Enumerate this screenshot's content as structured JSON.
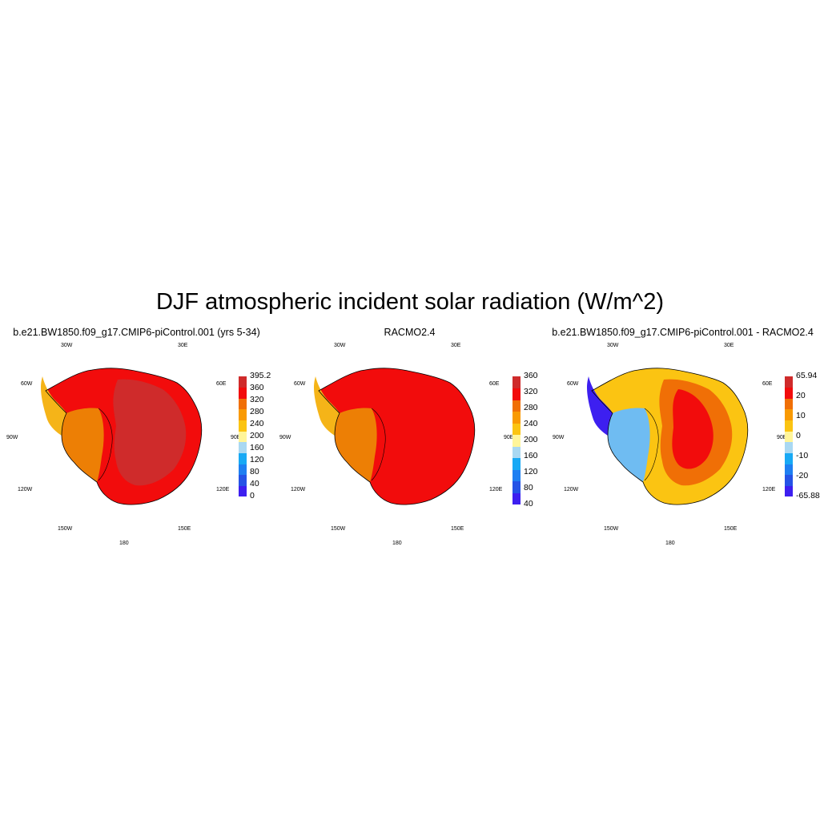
{
  "figure": {
    "title": "DJF atmospheric incident solar radiation (W/m^2)"
  },
  "map_labels": {
    "lon_30w": "30W",
    "lon_30e": "30E",
    "lon_60w": "60W",
    "lon_60e": "60E",
    "lon_90w": "90W",
    "lon_90e": "90E",
    "lon_120w": "120W",
    "lon_120e": "120E",
    "lon_150w": "150W",
    "lon_150e": "150E",
    "lon_180": "180"
  },
  "panels": [
    {
      "title": "b.e21.BW1850.f09_g17.CMIP6-piControl.001 (yrs 5-34)",
      "colorbar": {
        "colors": [
          "#3d1ff0",
          "#2553e6",
          "#1e7ff2",
          "#18a9f5",
          "#a9d8f2",
          "#fff59a",
          "#fbc412",
          "#f99a03",
          "#f06f06",
          "#f20c0c",
          "#cf2b2b"
        ],
        "ticks": [
          "0",
          "40",
          "80",
          "120",
          "160",
          "200",
          "240",
          "280",
          "320",
          "360",
          "395.2"
        ]
      },
      "regions": {
        "peninsula": "#f5b418",
        "west": "#ed7f05",
        "east": "#f20c0c",
        "plateau": "#cf2b2b"
      }
    },
    {
      "title": "RACMO2.4",
      "colorbar": {
        "colors": [
          "#3d1ff0",
          "#2553e6",
          "#1e7ff2",
          "#18a9f5",
          "#a9d8f2",
          "#fff59a",
          "#fbc412",
          "#f99a03",
          "#f06f06",
          "#f20c0c",
          "#cf2b2b"
        ],
        "ticks": [
          "40",
          "80",
          "120",
          "160",
          "200",
          "240",
          "280",
          "320",
          "360"
        ]
      },
      "regions": {
        "peninsula": "#f5b418",
        "west": "#ed7f05",
        "east": "#f20c0c",
        "plateau": "#f20c0c"
      }
    },
    {
      "title": "b.e21.BW1850.f09_g17.CMIP6-piControl.001 - RACMO2.4",
      "colorbar": {
        "colors": [
          "#3d1ff0",
          "#2553e6",
          "#1e7ff2",
          "#18a9f5",
          "#a9d8f2",
          "#fff59a",
          "#fbc412",
          "#f99a03",
          "#f06f06",
          "#f20c0c",
          "#cf2b2b"
        ],
        "ticks": [
          "-65.88",
          "-20",
          "-10",
          "0",
          "10",
          "20",
          "65.94"
        ]
      },
      "regions": {
        "peninsula": "#3d1ff0",
        "west": "#6fbcf2",
        "east": "#fbc412",
        "plateau": "#f06f06",
        "core": "#f20c0c"
      }
    }
  ]
}
